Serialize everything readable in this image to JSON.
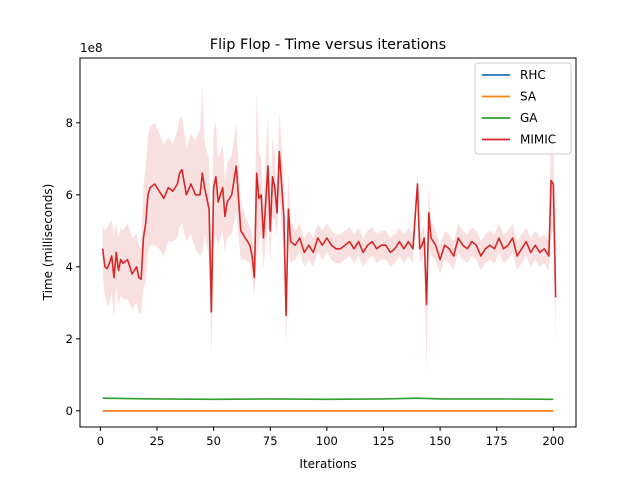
{
  "chart_data": {
    "type": "line",
    "title": "Flip Flop - Time versus iterations",
    "xlabel": "Iterations",
    "ylabel": "Time (milliseconds)",
    "y_offset_label": "1e8",
    "xlim": [
      -9,
      210
    ],
    "ylim": [
      -0.45,
      9.8
    ],
    "y_scale_factor": 100000000,
    "x_ticks": [
      0,
      25,
      50,
      75,
      100,
      125,
      150,
      175,
      200
    ],
    "y_ticks": [
      0,
      2,
      4,
      6,
      8
    ],
    "grid": false,
    "legend_position": "top-right",
    "series": [
      {
        "name": "RHC",
        "color": "#1f77b4",
        "x": [
          1,
          200
        ],
        "values": [
          0.0,
          0.0
        ]
      },
      {
        "name": "SA",
        "color": "#ff7f0e",
        "x": [
          1,
          200
        ],
        "values": [
          0.0,
          0.0
        ]
      },
      {
        "name": "GA",
        "color": "#2ca02c",
        "x": [
          1,
          25,
          50,
          75,
          100,
          125,
          140,
          150,
          175,
          200
        ],
        "values": [
          0.35,
          0.33,
          0.32,
          0.33,
          0.32,
          0.33,
          0.35,
          0.33,
          0.33,
          0.32
        ]
      },
      {
        "name": "MIMIC",
        "color": "#d62728",
        "band_color": "#f4c6c6",
        "x": [
          1,
          2,
          3,
          4,
          5,
          6,
          7,
          8,
          9,
          10,
          12,
          14,
          16,
          17,
          18,
          19,
          20,
          21,
          22,
          24,
          26,
          28,
          30,
          32,
          34,
          35,
          36,
          38,
          40,
          42,
          44,
          45,
          46,
          47,
          48,
          49,
          50,
          51,
          52,
          54,
          55,
          56,
          58,
          60,
          62,
          64,
          66,
          67,
          68,
          69,
          70,
          71,
          72,
          74,
          75,
          76,
          77,
          78,
          79,
          80,
          81,
          82,
          83,
          84,
          86,
          88,
          90,
          92,
          94,
          96,
          98,
          100,
          102,
          104,
          106,
          108,
          110,
          112,
          114,
          116,
          118,
          120,
          122,
          124,
          126,
          128,
          130,
          132,
          134,
          136,
          138,
          140,
          141,
          142,
          143,
          144,
          145,
          146,
          148,
          150,
          152,
          154,
          156,
          158,
          160,
          162,
          164,
          166,
          168,
          170,
          172,
          174,
          176,
          178,
          180,
          182,
          184,
          186,
          188,
          190,
          192,
          194,
          196,
          198,
          199,
          200,
          201
        ],
        "values": [
          4.5,
          4.0,
          3.95,
          4.1,
          4.3,
          3.7,
          4.4,
          3.9,
          4.2,
          4.1,
          4.2,
          3.8,
          4.0,
          3.7,
          3.65,
          4.8,
          5.2,
          6.0,
          6.2,
          6.3,
          6.1,
          5.9,
          6.2,
          6.1,
          6.3,
          6.6,
          6.7,
          6.0,
          6.3,
          6.0,
          6.0,
          6.6,
          6.2,
          5.9,
          5.6,
          2.75,
          6.2,
          6.5,
          5.8,
          6.2,
          5.4,
          5.8,
          6.0,
          6.8,
          5.0,
          4.8,
          4.6,
          4.3,
          3.7,
          6.6,
          5.9,
          6.0,
          4.8,
          6.8,
          5.0,
          6.5,
          6.2,
          5.5,
          7.2,
          6.3,
          5.4,
          2.65,
          5.6,
          4.7,
          4.6,
          4.8,
          4.4,
          4.6,
          4.4,
          4.8,
          4.6,
          4.8,
          4.6,
          4.5,
          4.5,
          4.6,
          4.7,
          4.5,
          4.7,
          4.4,
          4.6,
          4.7,
          4.5,
          4.6,
          4.6,
          4.4,
          4.5,
          4.7,
          4.5,
          4.7,
          4.5,
          6.3,
          4.5,
          4.6,
          4.8,
          2.95,
          5.5,
          4.8,
          4.6,
          4.2,
          4.6,
          4.5,
          4.3,
          4.8,
          4.6,
          4.5,
          4.7,
          4.6,
          4.3,
          4.5,
          4.6,
          4.5,
          4.8,
          4.5,
          4.6,
          4.8,
          4.3,
          4.5,
          4.7,
          4.4,
          4.6,
          4.4,
          4.5,
          4.3,
          6.4,
          6.3,
          3.15
        ],
        "band_upper": [
          5.2,
          5.0,
          5.1,
          5.2,
          5.3,
          4.9,
          5.2,
          4.8,
          5.1,
          5.0,
          5.2,
          4.8,
          4.9,
          4.6,
          4.5,
          6.2,
          6.8,
          7.6,
          7.9,
          8.0,
          7.7,
          7.4,
          7.6,
          7.4,
          7.8,
          8.1,
          8.2,
          7.3,
          7.7,
          7.5,
          7.8,
          9.0,
          7.5,
          7.2,
          7.0,
          4.2,
          7.8,
          8.0,
          7.0,
          7.4,
          6.4,
          6.9,
          7.1,
          8.0,
          5.8,
          5.4,
          5.1,
          4.9,
          4.2,
          8.9,
          7.2,
          7.0,
          5.7,
          8.3,
          5.8,
          7.6,
          7.1,
          6.2,
          8.3,
          7.4,
          6.4,
          3.6,
          6.6,
          5.3,
          5.0,
          5.2,
          4.8,
          5.0,
          4.8,
          5.2,
          5.0,
          5.2,
          5.0,
          4.9,
          4.9,
          5.0,
          5.1,
          4.9,
          5.1,
          4.8,
          5.0,
          5.1,
          4.9,
          5.0,
          5.0,
          4.8,
          4.9,
          5.1,
          4.9,
          5.1,
          4.9,
          6.6,
          4.9,
          5.0,
          5.2,
          3.6,
          6.3,
          5.3,
          5.0,
          4.6,
          5.0,
          4.9,
          4.7,
          5.2,
          5.0,
          4.9,
          5.1,
          5.0,
          4.7,
          4.9,
          5.0,
          4.9,
          5.2,
          4.9,
          5.0,
          5.2,
          4.7,
          4.9,
          5.1,
          4.8,
          5.0,
          4.8,
          4.9,
          4.7,
          8.0,
          7.5,
          4.4
        ],
        "band_lower": [
          3.8,
          3.2,
          2.9,
          3.0,
          3.3,
          2.6,
          3.5,
          2.9,
          3.2,
          3.1,
          3.1,
          2.8,
          3.0,
          2.7,
          2.7,
          3.4,
          3.6,
          4.4,
          4.6,
          4.6,
          4.5,
          4.3,
          4.7,
          4.7,
          4.8,
          5.1,
          5.2,
          4.7,
          4.9,
          4.5,
          4.3,
          4.4,
          4.9,
          4.6,
          4.2,
          1.5,
          4.6,
          4.9,
          4.6,
          5.0,
          4.4,
          4.8,
          4.9,
          5.5,
          4.2,
          4.2,
          4.1,
          3.7,
          3.2,
          4.3,
          4.6,
          5.0,
          3.9,
          5.3,
          4.2,
          5.4,
          5.3,
          4.8,
          6.1,
          5.2,
          4.4,
          1.7,
          4.6,
          4.1,
          4.2,
          4.4,
          4.0,
          4.2,
          4.0,
          4.4,
          4.2,
          4.4,
          4.2,
          4.1,
          4.1,
          4.2,
          4.3,
          4.1,
          4.3,
          4.0,
          4.2,
          4.3,
          4.1,
          4.2,
          4.2,
          4.0,
          4.1,
          4.3,
          4.1,
          4.3,
          4.1,
          6.0,
          4.1,
          4.2,
          4.4,
          1.0,
          4.7,
          4.3,
          4.2,
          3.8,
          4.2,
          4.1,
          3.9,
          4.4,
          4.2,
          4.1,
          4.3,
          4.2,
          3.9,
          4.1,
          4.2,
          4.1,
          4.4,
          4.1,
          4.2,
          4.4,
          3.9,
          4.1,
          4.3,
          4.0,
          4.2,
          4.0,
          4.1,
          3.9,
          4.8,
          5.1,
          1.8
        ]
      }
    ]
  }
}
